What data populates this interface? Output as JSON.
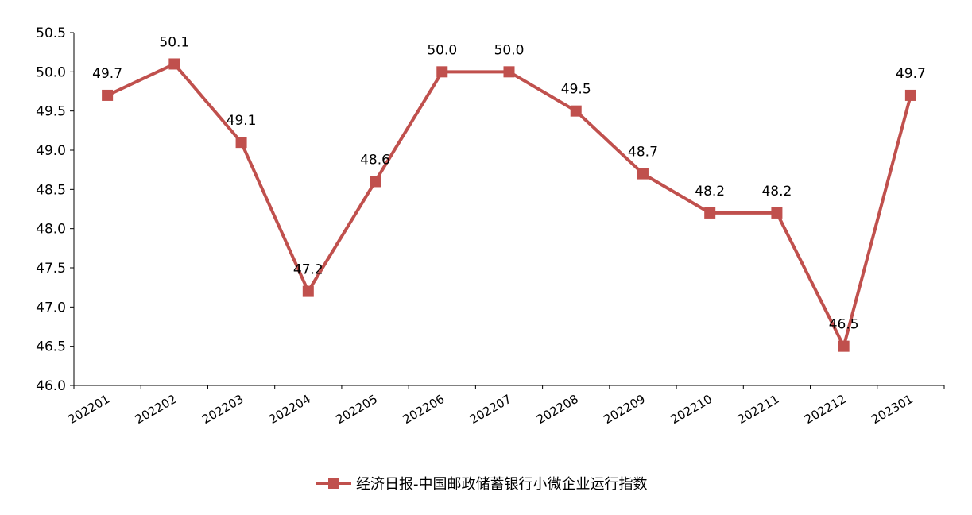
{
  "chart_data": {
    "type": "line",
    "categories": [
      "202201",
      "202202",
      "202203",
      "202204",
      "202205",
      "202206",
      "202207",
      "202208",
      "202209",
      "202210",
      "202211",
      "202212",
      "202301"
    ],
    "series": [
      {
        "name": "经济日报-中国邮政储蓄银行小微企业运行指数",
        "values": [
          49.7,
          50.1,
          49.1,
          47.2,
          48.6,
          50.0,
          50.0,
          49.5,
          48.7,
          48.2,
          48.2,
          46.5,
          49.7
        ],
        "labels": [
          "49.7",
          "50.1",
          "49.1",
          "47.2",
          "48.6",
          "50.0",
          "50.0",
          "49.5",
          "48.7",
          "48.2",
          "48.2",
          "46.5",
          "49.7"
        ],
        "color": "#C0504D",
        "marker": "square"
      }
    ],
    "ylim": [
      46.0,
      50.5
    ],
    "yticks": [
      "46.0",
      "46.5",
      "47.0",
      "47.5",
      "48.0",
      "48.5",
      "49.0",
      "49.5",
      "50.0",
      "50.5"
    ],
    "grid": false,
    "legend_position": "bottom"
  }
}
